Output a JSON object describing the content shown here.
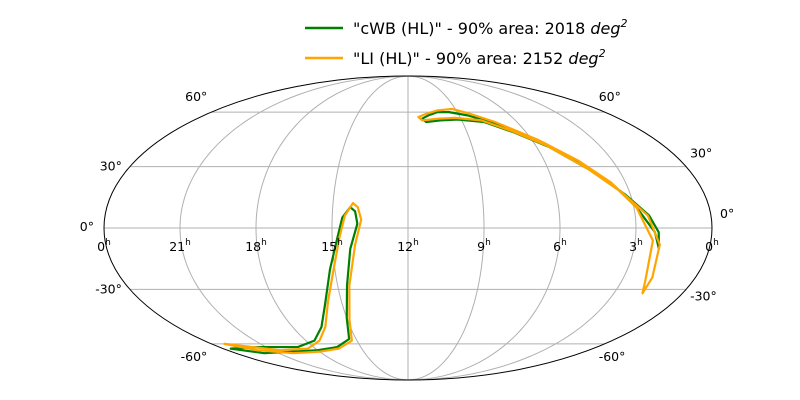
{
  "chart_data": {
    "type": "skymap",
    "projection": "mollweide",
    "title": "",
    "legend_position": "top-right",
    "ra_ticks": [
      {
        "ra": 24,
        "label": "0",
        "sup": "h"
      },
      {
        "ra": 21,
        "label": "21",
        "sup": "h"
      },
      {
        "ra": 18,
        "label": "18",
        "sup": "h"
      },
      {
        "ra": 15,
        "label": "15",
        "sup": "h"
      },
      {
        "ra": 12,
        "label": "12",
        "sup": "h"
      },
      {
        "ra": 9,
        "label": "9",
        "sup": "h"
      },
      {
        "ra": 6,
        "label": "6",
        "sup": "h"
      },
      {
        "ra": 3,
        "label": "3",
        "sup": "h"
      },
      {
        "ra": 0,
        "label": "0",
        "sup": "h"
      }
    ],
    "dec_ticks": [
      -60,
      -30,
      0,
      30,
      60
    ],
    "dec_labels": {
      "left": [
        {
          "dec": 60,
          "label": "60°"
        },
        {
          "dec": 30,
          "label": "30°"
        },
        {
          "dec": 0,
          "label": "0°"
        },
        {
          "dec": -30,
          "label": "-30°"
        },
        {
          "dec": -60,
          "label": "-60°"
        }
      ],
      "right": [
        {
          "dec": 60,
          "label": "60°"
        },
        {
          "dec": 30,
          "label": "30°"
        },
        {
          "dec": 0,
          "label": "0°"
        },
        {
          "dec": -30,
          "label": "-30°"
        },
        {
          "dec": -60,
          "label": "-60°"
        }
      ]
    },
    "series": [
      {
        "name": "\"cWB (HL)\" - 90% area: 2018 ",
        "unit": "deg",
        "unit_exp": "2",
        "color": "#008000",
        "regions": [
          [
            [
              9.5,
              60
            ],
            [
              10.2,
              60
            ],
            [
              10.8,
              58
            ],
            [
              11.2,
              56
            ],
            [
              11,
              54
            ],
            [
              10.2,
              55
            ],
            [
              9.2,
              55.5
            ],
            [
              7.8,
              54
            ],
            [
              6.6,
              48
            ],
            [
              5.4,
              40
            ],
            [
              4.2,
              28
            ],
            [
              3.2,
              16
            ],
            [
              2.45,
              6
            ],
            [
              2.1,
              -2
            ],
            [
              2.0,
              -10
            ],
            [
              2.25,
              -2
            ],
            [
              2.9,
              10
            ],
            [
              3.5,
              20
            ],
            [
              4.3,
              30
            ],
            [
              5.5,
              42
            ],
            [
              7.2,
              53
            ],
            [
              8.5,
              58
            ],
            [
              9.5,
              60
            ]
          ],
          [
            [
              14.3,
              10
            ],
            [
              14.6,
              5
            ],
            [
              14.8,
              -5
            ],
            [
              15.2,
              -20
            ],
            [
              15.8,
              -38
            ],
            [
              16.5,
              -50
            ],
            [
              17.5,
              -58
            ],
            [
              19,
              -62
            ],
            [
              21.5,
              -62
            ],
            [
              23.5,
              -63
            ],
            [
              22,
              -66
            ],
            [
              20,
              -65
            ],
            [
              18,
              -64
            ],
            [
              16.5,
              -62
            ],
            [
              15.4,
              -57
            ],
            [
              15.0,
              -45
            ],
            [
              14.6,
              -28
            ],
            [
              14.3,
              -10
            ],
            [
              14.0,
              2
            ],
            [
              14.1,
              8
            ],
            [
              14.3,
              10
            ]
          ]
        ]
      },
      {
        "name": "\"LI (HL)\" - 90% area: 2152 ",
        "unit": "deg",
        "unit_exp": "2",
        "color": "#ffa500",
        "regions": [
          [
            [
              9.2,
              62
            ],
            [
              10.2,
              61
            ],
            [
              10.9,
              59
            ],
            [
              11.4,
              57
            ],
            [
              11.2,
              55
            ],
            [
              10.3,
              56
            ],
            [
              9.3,
              56.5
            ],
            [
              7.9,
              55
            ],
            [
              6.7,
              49
            ],
            [
              5.5,
              41
            ],
            [
              4.3,
              29
            ],
            [
              3.3,
              17
            ],
            [
              2.5,
              6
            ],
            [
              2.0,
              -8
            ],
            [
              1.8,
              -24
            ],
            [
              1.75,
              -32
            ],
            [
              2.0,
              -26
            ],
            [
              2.3,
              -6
            ],
            [
              2.9,
              10
            ],
            [
              3.6,
              22
            ],
            [
              4.5,
              33
            ],
            [
              5.7,
              44
            ],
            [
              7.2,
              54
            ],
            [
              8.3,
              59
            ],
            [
              9.2,
              62
            ]
          ],
          [
            [
              14.2,
              12
            ],
            [
              14.5,
              6
            ],
            [
              14.7,
              -4
            ],
            [
              15.0,
              -18
            ],
            [
              15.6,
              -36
            ],
            [
              16.3,
              -50
            ],
            [
              17.2,
              -58
            ],
            [
              18.5,
              -63
            ],
            [
              20.5,
              -64
            ],
            [
              23.2,
              -60
            ],
            [
              22,
              -64
            ],
            [
              20,
              -66
            ],
            [
              18,
              -65
            ],
            [
              16.5,
              -63
            ],
            [
              15.3,
              -58
            ],
            [
              14.9,
              -46
            ],
            [
              14.5,
              -28
            ],
            [
              14.1,
              -8
            ],
            [
              13.85,
              4
            ],
            [
              14.0,
              10
            ],
            [
              14.2,
              12
            ]
          ]
        ]
      }
    ]
  }
}
